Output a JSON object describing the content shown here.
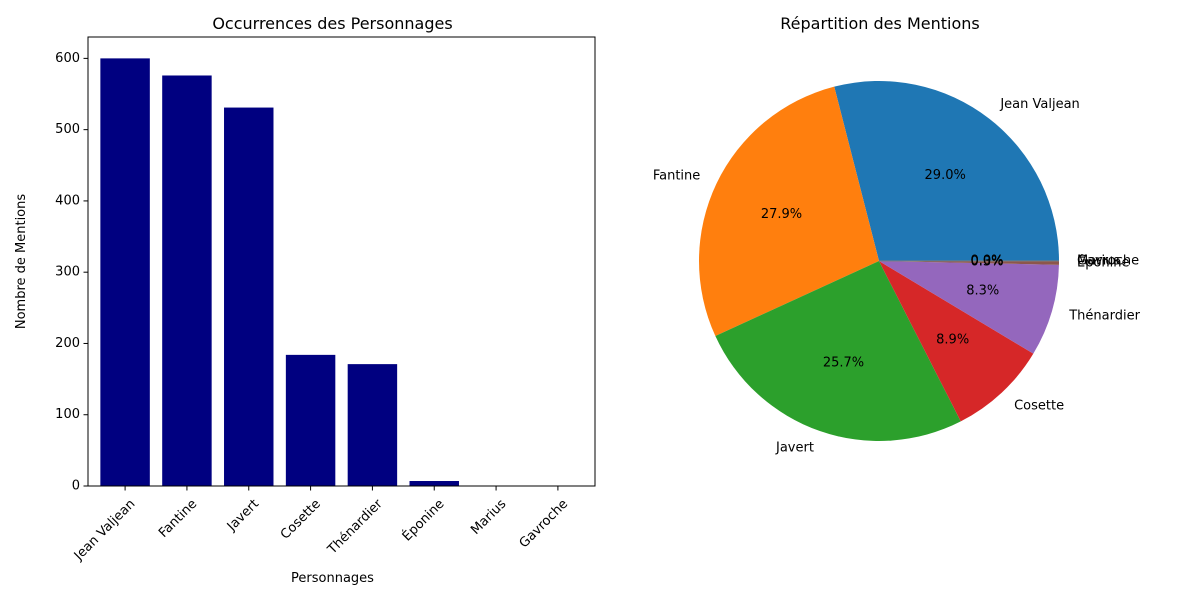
{
  "chart_data": [
    {
      "type": "bar",
      "title": "Occurrences des Personnages",
      "xlabel": "Personnages",
      "ylabel": "Nombre de Mentions",
      "categories": [
        "Jean Valjean",
        "Fantine",
        "Javert",
        "Cosette",
        "Thénardier",
        "Éponine",
        "Marius",
        "Gavroche"
      ],
      "values": [
        600,
        576,
        531,
        184,
        171,
        7,
        0,
        0
      ],
      "ylim": [
        0,
        630
      ],
      "yticks": [
        0,
        100,
        200,
        300,
        400,
        500,
        600
      ],
      "bar_color": "#000080",
      "grid": false
    },
    {
      "type": "pie",
      "title": "Répartition des Mentions",
      "labels": [
        "Jean Valjean",
        "Fantine",
        "Javert",
        "Cosette",
        "Thénardier",
        "Éponine",
        "Marius",
        "Gavroche"
      ],
      "values": [
        600,
        576,
        531,
        184,
        171,
        7,
        0,
        0
      ],
      "percent_labels": [
        "29.0%",
        "27.9%",
        "25.7%",
        "8.9%",
        "8.3%",
        "0.3%",
        "0.0%",
        "0.0%"
      ],
      "colors": [
        "#1f77b4",
        "#ff7f0e",
        "#2ca02c",
        "#d62728",
        "#9467bd",
        "#8c564b",
        "#e377c2",
        "#7f7f7f"
      ]
    }
  ]
}
